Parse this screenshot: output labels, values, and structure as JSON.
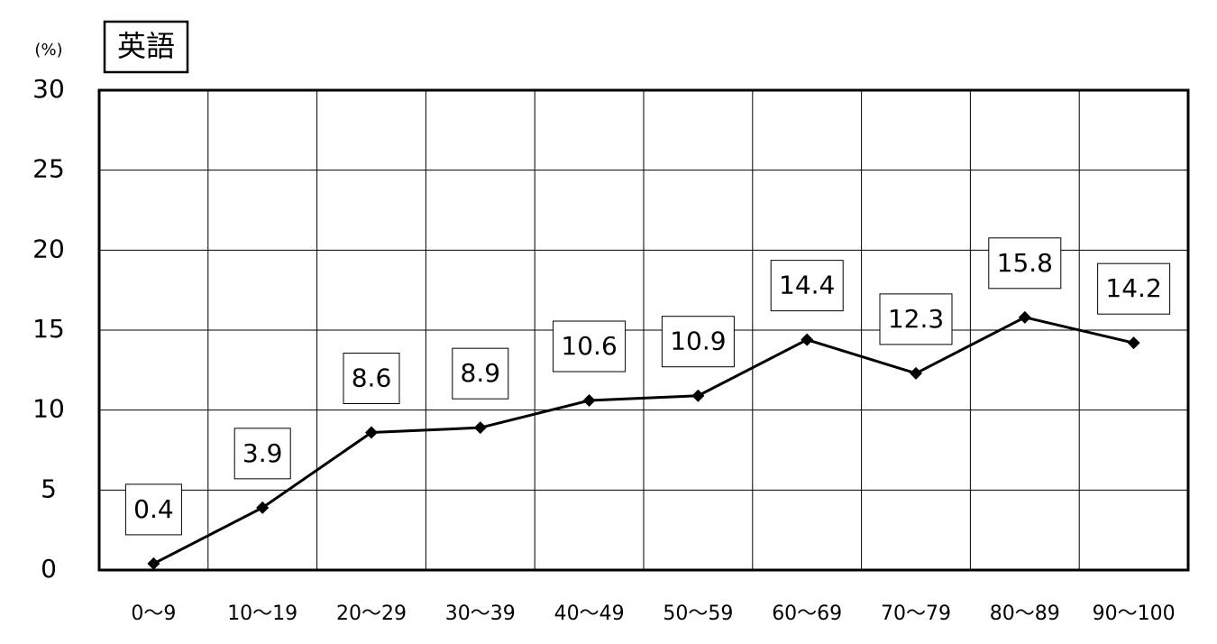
{
  "chart_data": {
    "type": "line",
    "title": "英語",
    "y_label": "(%)",
    "categories": [
      "0～9",
      "10～19",
      "20～29",
      "30～39",
      "40～49",
      "50～59",
      "60～69",
      "70～79",
      "80～89",
      "90～100"
    ],
    "values": [
      0.4,
      3.9,
      8.6,
      8.9,
      10.6,
      10.9,
      14.4,
      12.3,
      15.8,
      14.2
    ],
    "color": "#000000",
    "ylim": [
      0,
      30
    ],
    "yticks": [
      0,
      5,
      10,
      15,
      20,
      25,
      30
    ],
    "grid": true,
    "data_labels": true
  }
}
